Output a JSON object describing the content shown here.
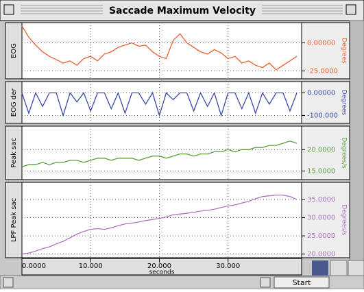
{
  "window": {
    "title": "Saccade Maximum Velocity",
    "button": "Start"
  },
  "chart_data": [
    {
      "type": "line",
      "ylabel": "EOG",
      "y2label": "Degrees",
      "ylim": [
        -32,
        18
      ],
      "yticks": [
        {
          "value": 0,
          "label": "0.00000"
        },
        {
          "value": -25,
          "label": "-25.0000"
        }
      ],
      "x": [
        0,
        1,
        2,
        3,
        4,
        5,
        6,
        7,
        8,
        9,
        10,
        11,
        12,
        13,
        14,
        15,
        16,
        17,
        18,
        19,
        20,
        21,
        22,
        23,
        24,
        25,
        26,
        27,
        28,
        29,
        30,
        31,
        32,
        33,
        34,
        35,
        36,
        37,
        38,
        39,
        40
      ],
      "series": [
        {
          "name": "EOG",
          "color": "#e8602c",
          "values": [
            15,
            5,
            -2,
            -8,
            -12,
            -15,
            -18,
            -16,
            -20,
            -14,
            -12,
            -16,
            -10,
            -8,
            -4,
            -2,
            0,
            -3,
            -2,
            -8,
            -12,
            -14,
            2,
            8,
            0,
            -4,
            -8,
            -10,
            -6,
            -9,
            -14,
            -12,
            -18,
            -16,
            -20,
            -22,
            -18,
            -24,
            -20,
            -16,
            -12
          ]
        }
      ]
    },
    {
      "type": "line",
      "ylabel": "EOG der",
      "y2label": "Degrees",
      "ylim": [
        -135,
        50
      ],
      "yticks": [
        {
          "value": 0,
          "label": "0.00000"
        },
        {
          "value": -100,
          "label": "-100.000"
        }
      ],
      "x": [
        0,
        1,
        2,
        3,
        4,
        5,
        6,
        7,
        8,
        9,
        10,
        11,
        12,
        13,
        14,
        15,
        16,
        17,
        18,
        19,
        20,
        21,
        22,
        23,
        24,
        25,
        26,
        27,
        28,
        29,
        30,
        31,
        32,
        33,
        34,
        35,
        36,
        37,
        38,
        39,
        40
      ],
      "series": [
        {
          "name": "EOG der",
          "color": "#3a4aa8",
          "values": [
            0,
            -90,
            0,
            -60,
            0,
            0,
            -100,
            0,
            -40,
            0,
            -80,
            0,
            0,
            -70,
            0,
            -90,
            0,
            0,
            -50,
            0,
            -100,
            0,
            -30,
            0,
            0,
            -80,
            0,
            -60,
            0,
            -100,
            0,
            0,
            -70,
            0,
            -90,
            0,
            -50,
            0,
            0,
            -80,
            0
          ]
        }
      ]
    },
    {
      "type": "line",
      "ylabel": "Peak sac",
      "y2label": "Degrees/s",
      "ylim": [
        13,
        25.5
      ],
      "yticks": [
        {
          "value": 20,
          "label": "20.0000"
        },
        {
          "value": 15,
          "label": "15.0000"
        }
      ],
      "x": [
        0,
        1,
        2,
        3,
        4,
        5,
        6,
        7,
        8,
        9,
        10,
        11,
        12,
        13,
        14,
        15,
        16,
        17,
        18,
        19,
        20,
        21,
        22,
        23,
        24,
        25,
        26,
        27,
        28,
        29,
        30,
        31,
        32,
        33,
        34,
        35,
        36,
        37,
        38,
        39,
        40
      ],
      "series": [
        {
          "name": "Peak sac",
          "color": "#5aa03a",
          "values": [
            16,
            16.5,
            16.5,
            17,
            16.5,
            17,
            17,
            17.5,
            17.5,
            17,
            17.5,
            18,
            18,
            17.5,
            18,
            18,
            18,
            17.5,
            18,
            18.5,
            18.5,
            18,
            18.5,
            19,
            19,
            18.5,
            19,
            19,
            19.5,
            19.5,
            20,
            19.5,
            20,
            20,
            20.5,
            20.5,
            21,
            21,
            21.5,
            22,
            21.5
          ]
        }
      ]
    },
    {
      "type": "line",
      "ylabel": "LPF Peak sac",
      "y2label": "Degrees/s",
      "xlabel": "seconds",
      "xlim": [
        0,
        40.7
      ],
      "xticks": [
        {
          "value": 0,
          "label": "0.0000"
        },
        {
          "value": 10,
          "label": "10.000"
        },
        {
          "value": 20,
          "label": "20.000"
        },
        {
          "value": 30,
          "label": "30.000"
        }
      ],
      "ylim": [
        19,
        39.7
      ],
      "yticks": [
        {
          "value": 35,
          "label": "35.0000"
        },
        {
          "value": 30,
          "label": "30.0000"
        },
        {
          "value": 25,
          "label": "25.0000"
        },
        {
          "value": 20,
          "label": "20.0000"
        }
      ],
      "x": [
        0,
        1,
        2,
        3,
        4,
        5,
        6,
        7,
        8,
        9,
        10,
        11,
        12,
        13,
        14,
        15,
        16,
        17,
        18,
        19,
        20,
        21,
        22,
        23,
        24,
        25,
        26,
        27,
        28,
        29,
        30,
        31,
        32,
        33,
        34,
        35,
        36,
        37,
        38,
        39,
        40
      ],
      "series": [
        {
          "name": "LPF Peak sac",
          "color": "#b070c0",
          "values": [
            20,
            20.3,
            20.8,
            21.5,
            22,
            22.8,
            23.5,
            24.5,
            25.5,
            26.2,
            26.8,
            27,
            26.8,
            27.2,
            27.8,
            28.3,
            28.5,
            28.8,
            29.2,
            29.5,
            29.8,
            30.2,
            30.8,
            31,
            31.2,
            31.5,
            31.8,
            32,
            32.3,
            32.8,
            33.2,
            33.5,
            34,
            34.5,
            35.2,
            35.8,
            36,
            36.2,
            36.2,
            35.8,
            35
          ]
        }
      ]
    }
  ]
}
